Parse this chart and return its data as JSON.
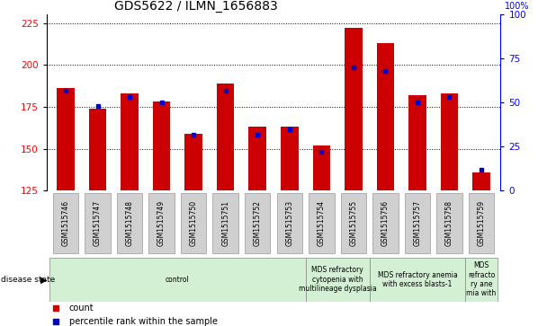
{
  "title": "GDS5622 / ILMN_1656883",
  "samples": [
    "GSM1515746",
    "GSM1515747",
    "GSM1515748",
    "GSM1515749",
    "GSM1515750",
    "GSM1515751",
    "GSM1515752",
    "GSM1515753",
    "GSM1515754",
    "GSM1515755",
    "GSM1515756",
    "GSM1515757",
    "GSM1515758",
    "GSM1515759"
  ],
  "counts": [
    186,
    174,
    183,
    178,
    159,
    189,
    163,
    163,
    152,
    222,
    213,
    182,
    183,
    136
  ],
  "percentiles": [
    57,
    48,
    53,
    50,
    32,
    57,
    32,
    35,
    22,
    70,
    68,
    50,
    53,
    12
  ],
  "ylim_left": [
    125,
    230
  ],
  "ylim_right": [
    0,
    100
  ],
  "yticks_left": [
    125,
    150,
    175,
    200,
    225
  ],
  "yticks_right": [
    0,
    25,
    50,
    75,
    100
  ],
  "bar_color": "#cc0000",
  "dot_color": "#0000cc",
  "bar_bottom": 125,
  "disease_groups": [
    {
      "label": "control",
      "start": 0,
      "end": 8
    },
    {
      "label": "MDS refractory\ncytopenia with\nmultilineage dysplasia",
      "start": 8,
      "end": 10
    },
    {
      "label": "MDS refractory anemia\nwith excess blasts-1",
      "start": 10,
      "end": 13
    },
    {
      "label": "MDS\nrefracto\nry ane\nmia with",
      "start": 13,
      "end": 14
    }
  ],
  "group_color": "#d4f0d4",
  "sample_box_color": "#d0d0d0",
  "legend_items": [
    {
      "label": "count",
      "color": "#cc0000"
    },
    {
      "label": "percentile rank within the sample",
      "color": "#0000cc"
    }
  ]
}
